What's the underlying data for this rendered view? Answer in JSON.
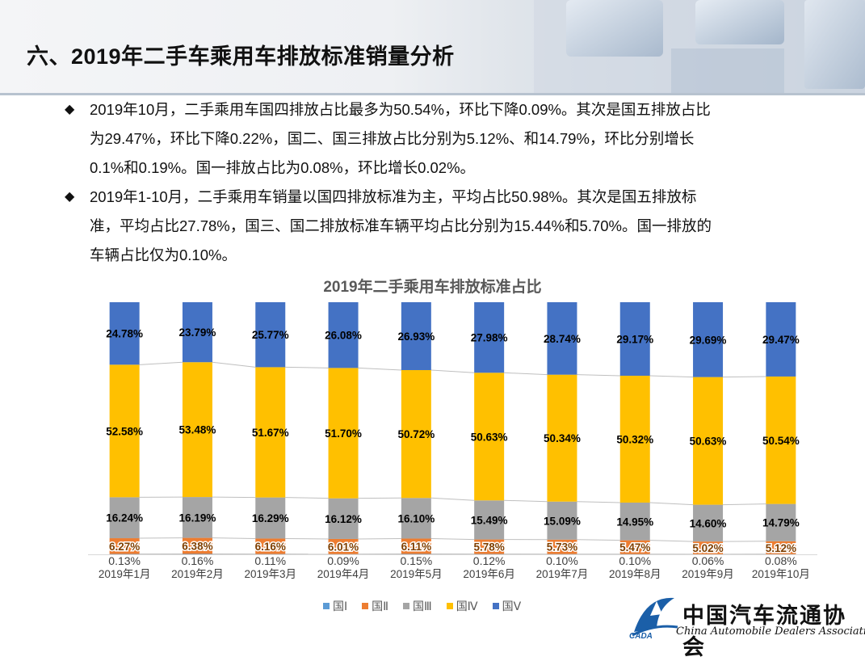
{
  "page": {
    "title": "六、2019年二手车乘用车排放标准销量分析"
  },
  "bullets": [
    {
      "lines": [
        "2019年10月，二手乘用车国四排放占比最多为50.54%，环比下降0.09%。其次是国五排放占比",
        "为29.47%，环比下降0.22%，国二、国三排放占比分别为5.12%、和14.79%，环比分别增长",
        "0.1%和0.19%。国一排放占比为0.08%，环比增长0.02%。"
      ]
    },
    {
      "lines": [
        "2019年1-10月，二手乘用车销量以国四排放标准为主，平均占比50.98%。其次是国五排放标",
        "准，平均占比27.78%，国三、国二排放标准车辆平均占比分别为15.44%和5.70%。国一排放的",
        "车辆占比仅为0.10%。"
      ]
    }
  ],
  "bullet_mark": "◆",
  "chart_data": {
    "type": "bar",
    "stacked": true,
    "percent": true,
    "title": "2019年二手乘用车排放标准占比",
    "categories": [
      "2019年1月",
      "2019年2月",
      "2019年3月",
      "2019年4月",
      "2019年5月",
      "2019年6月",
      "2019年7月",
      "2019年8月",
      "2019年9月",
      "2019年10月"
    ],
    "series": [
      {
        "name": "国Ⅰ",
        "color": "#5b9bd5",
        "values": [
          0.13,
          0.16,
          0.11,
          0.09,
          0.15,
          0.12,
          0.1,
          0.1,
          0.06,
          0.08
        ]
      },
      {
        "name": "国Ⅱ",
        "color": "#ed7d31",
        "values": [
          6.27,
          6.38,
          6.16,
          6.01,
          6.11,
          5.78,
          5.73,
          5.47,
          5.02,
          5.12
        ]
      },
      {
        "name": "国Ⅲ",
        "color": "#a5a5a5",
        "values": [
          16.24,
          16.19,
          16.29,
          16.12,
          16.1,
          15.49,
          15.09,
          14.95,
          14.6,
          14.79
        ]
      },
      {
        "name": "国Ⅳ",
        "color": "#ffc000",
        "values": [
          52.58,
          53.48,
          51.67,
          51.7,
          50.72,
          50.63,
          50.34,
          50.32,
          50.63,
          50.54
        ]
      },
      {
        "name": "国Ⅴ",
        "color": "#4472c4",
        "values": [
          24.78,
          23.79,
          25.77,
          26.08,
          26.93,
          27.98,
          28.74,
          29.17,
          29.69,
          29.47
        ]
      }
    ],
    "ylim": [
      0,
      100
    ],
    "grid": false,
    "series_lines": true,
    "legend_position": "bottom"
  },
  "logo": {
    "cn": "中国汽车流通协会",
    "en": "China Automobile Dealers Association",
    "abbr": "CADA"
  }
}
